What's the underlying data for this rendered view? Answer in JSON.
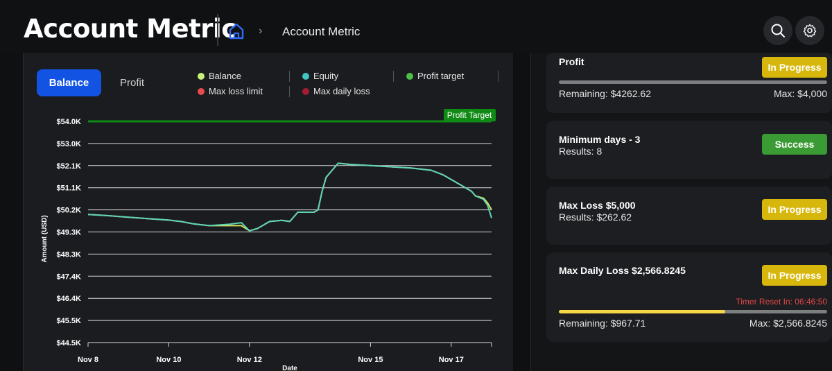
{
  "header": {
    "title": "Account Metric",
    "breadcrumb": "Account Metric",
    "icons": [
      "home-icon",
      "chevron-right-icon",
      "search-icon",
      "gear-icon"
    ]
  },
  "tabs": {
    "active": "Balance",
    "inactive": "Profit"
  },
  "legend": [
    {
      "label": "Balance",
      "color": "#c8f07a"
    },
    {
      "label": "Equity",
      "color": "#3fc4c0"
    },
    {
      "label": "Profit target",
      "color": "#4cc04a"
    },
    {
      "label": "Max loss limit",
      "color": "#e94b4b"
    },
    {
      "label": "Max daily loss",
      "color": "#a51d35"
    }
  ],
  "chart_data": {
    "type": "line",
    "xlabel": "Date",
    "ylabel": "Amount (USD)",
    "y_ticks": [
      "$44.5K",
      "$45.5K",
      "$46.4K",
      "$47.4K",
      "$48.3K",
      "$49.3K",
      "$50.2K",
      "$51.1K",
      "$52.1K",
      "$53.0K",
      "$54.0K"
    ],
    "ylim": [
      44500,
      54000
    ],
    "x_ticks": [
      "Nov 8",
      "Nov 10",
      "Nov 12",
      "Nov 15",
      "Nov 17"
    ],
    "x_tick_days": [
      0,
      2,
      4,
      7,
      9
    ],
    "xlim": [
      0,
      10
    ],
    "grid": true,
    "annotation": "Profit Target",
    "profit_target_value": 54000,
    "series": [
      {
        "name": "Balance",
        "color": "#d4e35a",
        "x": [
          0,
          0.5,
          1.0,
          1.5,
          2.0,
          2.3,
          2.6,
          3.0,
          3.5,
          3.8,
          4.0,
          4.2,
          4.5,
          4.8,
          5.0,
          5.2,
          5.5,
          5.6,
          5.7,
          5.8,
          5.9,
          6.2,
          6.5,
          7.0,
          7.5,
          8.0,
          8.5,
          8.8,
          9.0,
          9.3,
          9.5,
          9.6,
          9.8,
          9.9,
          10.0
        ],
        "y": [
          50000,
          49950,
          49880,
          49820,
          49760,
          49700,
          49600,
          49520,
          49520,
          49520,
          49300,
          49400,
          49700,
          49750,
          49700,
          50100,
          50100,
          50100,
          50200,
          51000,
          51600,
          52200,
          52150,
          52100,
          52050,
          52000,
          51900,
          51700,
          51500,
          51200,
          51000,
          50800,
          50700,
          50500,
          50200
        ]
      },
      {
        "name": "Equity",
        "color": "#5fd3b8",
        "x": [
          0,
          0.5,
          1.0,
          1.5,
          2.0,
          2.3,
          2.6,
          3.0,
          3.5,
          3.8,
          4.0,
          4.2,
          4.5,
          4.8,
          5.0,
          5.2,
          5.5,
          5.6,
          5.7,
          5.8,
          5.9,
          6.2,
          6.5,
          7.0,
          7.5,
          8.0,
          8.5,
          8.8,
          9.0,
          9.3,
          9.5,
          9.6,
          9.8,
          9.9,
          10.0
        ],
        "y": [
          50000,
          49950,
          49880,
          49820,
          49760,
          49700,
          49600,
          49520,
          49580,
          49650,
          49300,
          49400,
          49700,
          49750,
          49700,
          50100,
          50100,
          50100,
          50200,
          51000,
          51600,
          52200,
          52150,
          52100,
          52050,
          52000,
          51900,
          51700,
          51500,
          51200,
          51000,
          50800,
          50650,
          50400,
          49850
        ]
      }
    ]
  },
  "cards": [
    {
      "title": "Profit",
      "badge": "In Progress",
      "badge_kind": "progress",
      "progress_fraction": 0,
      "remaining": "Remaining: $4262.62",
      "max": "Max: $4,000"
    },
    {
      "title": "Minimum days - 3",
      "results": "Results: 8",
      "badge": "Success",
      "badge_kind": "success"
    },
    {
      "title": "Max Loss $5,000",
      "results": "Results: $262.62",
      "badge": "In Progress",
      "badge_kind": "progress"
    },
    {
      "title": "Max Daily Loss $2,566.8245",
      "badge": "In Progress",
      "badge_kind": "progress",
      "timer": "Timer Reset In: 06:46:50",
      "progress_fraction": 0.62,
      "remaining": "Remaining: $967.71",
      "max": "Max: $2,566.8245"
    }
  ]
}
